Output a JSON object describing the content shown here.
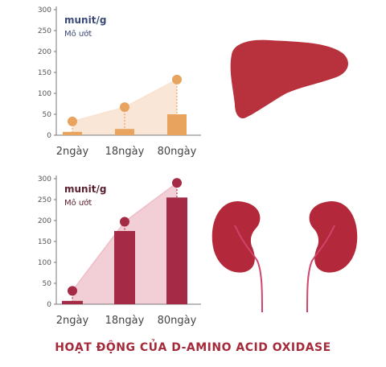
{
  "colors": {
    "liver_bar": "#E8A45F",
    "liver_area": "#F9E2CF",
    "liver_organ": "#B8323D",
    "kidney_bar": "#A52A45",
    "kidney_area": "#EDBDC8",
    "kidney_organ": "#B3283A",
    "ureter": "#D0446A",
    "unit_top": "#3B4A78",
    "unit_bottom": "#5B1E2E",
    "caption": "#A52A3A"
  },
  "icons": [
    "liver-icon",
    "kidneys-icon"
  ],
  "caption": "HOẠT ĐỘNG CỦA D-AMINO ACID OXIDASE",
  "chart_data": [
    {
      "type": "bar",
      "organ": "liver",
      "unit": "munit/g",
      "sublabel": "Mô ướt",
      "categories": [
        "2ngày",
        "18ngày",
        "80ngày"
      ],
      "values": [
        8,
        15,
        50
      ],
      "markers": [
        33,
        67,
        133
      ],
      "ylim": [
        0,
        300
      ],
      "yticks": [
        "0",
        "50",
        "100",
        "150",
        "200",
        "250",
        "300"
      ],
      "grid": false
    },
    {
      "type": "bar",
      "organ": "kidney",
      "unit": "munit/g",
      "sublabel": "Mô ướt",
      "categories": [
        "2ngày",
        "18ngày",
        "80ngày"
      ],
      "values": [
        8,
        175,
        255
      ],
      "markers": [
        32,
        197,
        290
      ],
      "ylim": [
        0,
        300
      ],
      "yticks": [
        "0",
        "50",
        "100",
        "150",
        "200",
        "250",
        "300"
      ],
      "grid": false
    }
  ]
}
